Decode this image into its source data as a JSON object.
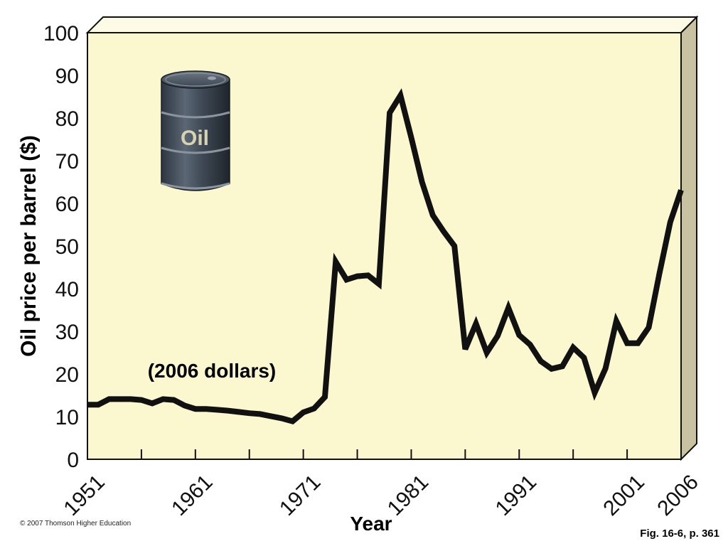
{
  "chart_data": {
    "type": "line",
    "title": "",
    "subtitle": "(2006 dollars)",
    "xlabel": "Year",
    "ylabel": "Oil price per barrel ($)",
    "xlim": [
      1951,
      2006
    ],
    "ylim": [
      0,
      100
    ],
    "y_ticks": [
      "0",
      "10",
      "20",
      "30",
      "40",
      "50",
      "60",
      "70",
      "80",
      "90",
      "100"
    ],
    "x_ticks": [
      "1951",
      "1961",
      "1971",
      "1981",
      "1991",
      "2001",
      "2006"
    ],
    "grid": false,
    "series": [
      {
        "color": "#111111",
        "x": [
          1951,
          1952,
          1953,
          1954,
          1955,
          1956,
          1957,
          1958,
          1959,
          1960,
          1961,
          1962,
          1963,
          1964,
          1965,
          1966,
          1967,
          1968,
          1969,
          1970,
          1971,
          1972,
          1973,
          1974,
          1975,
          1976,
          1977,
          1978,
          1979,
          1980,
          1981,
          1982,
          1983,
          1984,
          1985,
          1986,
          1987,
          1988,
          1989,
          1990,
          1991,
          1992,
          1993,
          1994,
          1995,
          1996,
          1997,
          1998,
          1999,
          2000,
          2001,
          2002,
          2003,
          2004,
          2005,
          2006
        ],
        "y": [
          12.8,
          12.8,
          14.1,
          14.1,
          14.1,
          13.9,
          13.1,
          14.1,
          13.9,
          12.6,
          11.8,
          11.8,
          11.6,
          11.4,
          11.1,
          10.8,
          10.6,
          10.1,
          9.6,
          8.9,
          11.0,
          11.9,
          14.6,
          46.3,
          42.1,
          42.9,
          43.1,
          41.1,
          81.2,
          85.3,
          75.4,
          65.0,
          57.2,
          53.4,
          50.0,
          25.8,
          31.8,
          25.0,
          28.9,
          35.5,
          29.1,
          26.9,
          23.0,
          21.2,
          21.8,
          26.2,
          23.8,
          15.6,
          21.3,
          32.4,
          27.2,
          27.2,
          30.9,
          43.6,
          55.6,
          63.1
        ]
      }
    ],
    "annotations": [
      "(2006 dollars)"
    ],
    "colors": {
      "plot_face": "#fbf7cf",
      "top_face": "#fdfbe6",
      "side_face": "#c9c2a0",
      "line": "#111111"
    }
  },
  "illustration": {
    "barrel_label": "Oil",
    "icon": "oil-barrel-icon"
  },
  "footer": {
    "copyright": "© 2007 Thomson Higher Education",
    "figure_ref": "Fig. 16-6, p. 361"
  }
}
